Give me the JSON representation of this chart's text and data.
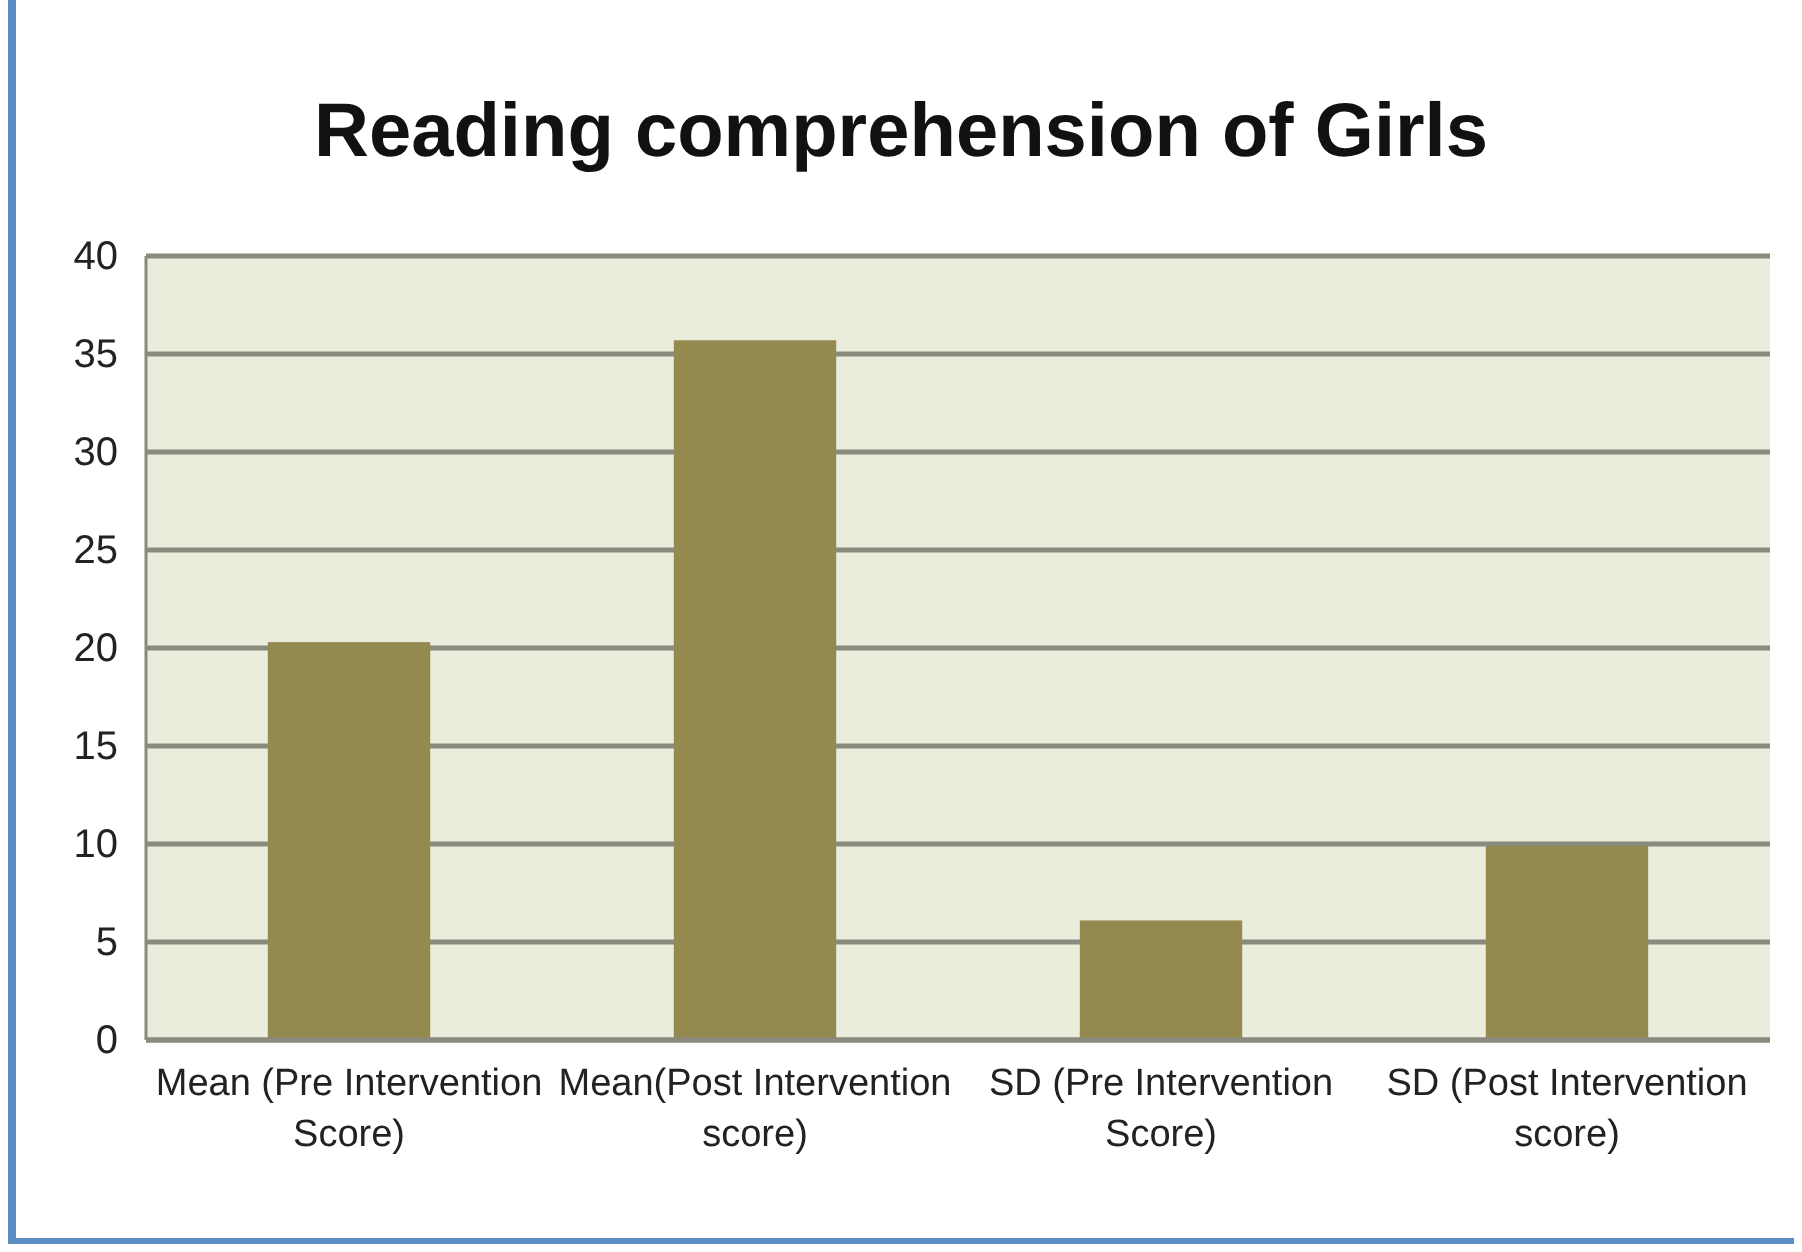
{
  "chart_data": {
    "type": "bar",
    "title": "Reading comprehension of Girls",
    "categories": [
      "Mean (Pre Intervention Score)",
      "Mean(Post Intervention score)",
      "SD (Pre Intervention Score)",
      "SD (Post Intervention score)"
    ],
    "values": [
      20.3,
      35.7,
      6.1,
      9.9
    ],
    "color": "#94894f",
    "ylim": [
      0,
      40
    ],
    "yticks": [
      0,
      5,
      10,
      15,
      20,
      25,
      30,
      35,
      40
    ],
    "grid": "y"
  }
}
